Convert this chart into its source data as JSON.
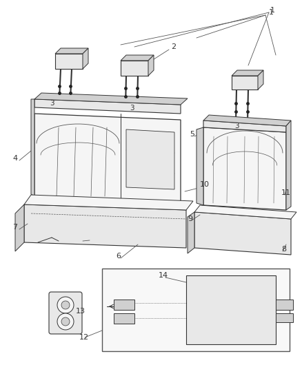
{
  "background_color": "#ffffff",
  "line_color": "#555555",
  "dark_line": "#333333",
  "text_color": "#333333",
  "face_light": "#f5f5f5",
  "face_mid": "#e8e8e8",
  "face_dark": "#d0d0d0",
  "fig_w": 4.38,
  "fig_h": 5.33,
  "dpi": 100
}
